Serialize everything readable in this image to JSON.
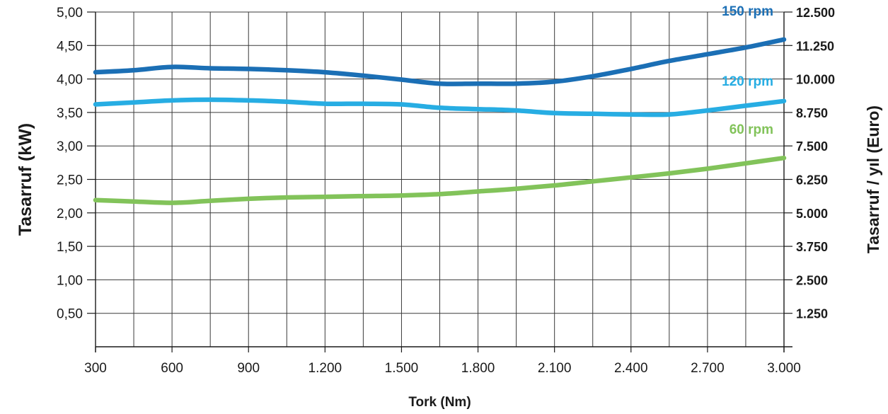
{
  "chart_data": {
    "type": "line",
    "ylabel": "Tasarruf (kW)",
    "ylabel_right": "Tasarruf / yıl  (Euro)",
    "xlabel": "Tork (Nm)",
    "xlim": [
      300,
      3000
    ],
    "ylim": [
      0,
      5
    ],
    "y_right_lim": [
      0,
      12500
    ],
    "grid": true,
    "x_ticks": [
      {
        "value": 300,
        "label": "300"
      },
      {
        "value": 600,
        "label": "600"
      },
      {
        "value": 900,
        "label": "900"
      },
      {
        "value": 1200,
        "label": "1.200"
      },
      {
        "value": 1500,
        "label": "1.500"
      },
      {
        "value": 1800,
        "label": "1.800"
      },
      {
        "value": 2100,
        "label": "2.100"
      },
      {
        "value": 2400,
        "label": "2.400"
      },
      {
        "value": 2700,
        "label": "2.700"
      },
      {
        "value": 3000,
        "label": "3.000"
      }
    ],
    "x_minor_gridlines": [
      450,
      750,
      1050,
      1350,
      1650,
      1950,
      2250,
      2550,
      2850
    ],
    "y_ticks_left": [
      {
        "value": 0.5,
        "label": "0,50"
      },
      {
        "value": 1.0,
        "label": "1,00"
      },
      {
        "value": 1.5,
        "label": "1,50"
      },
      {
        "value": 2.0,
        "label": "2,00"
      },
      {
        "value": 2.5,
        "label": "2,50"
      },
      {
        "value": 3.0,
        "label": "3,00"
      },
      {
        "value": 3.5,
        "label": "3,50"
      },
      {
        "value": 4.0,
        "label": "4,00"
      },
      {
        "value": 4.5,
        "label": "4,50"
      },
      {
        "value": 5.0,
        "label": "5,00"
      }
    ],
    "y_ticks_right": [
      {
        "value": 1250,
        "label": "1.250"
      },
      {
        "value": 2500,
        "label": "2.500"
      },
      {
        "value": 3750,
        "label": "3.750"
      },
      {
        "value": 5000,
        "label": "5.000"
      },
      {
        "value": 6250,
        "label": "6.250"
      },
      {
        "value": 7500,
        "label": "7.500"
      },
      {
        "value": 8750,
        "label": "8.750"
      },
      {
        "value": 10000,
        "label": "10.000"
      },
      {
        "value": 11250,
        "label": "11.250"
      },
      {
        "value": 12500,
        "label": "12.500"
      }
    ],
    "series": [
      {
        "name": "150 rpm",
        "color": "#1b6fb5",
        "x": [
          300,
          450,
          600,
          750,
          900,
          1050,
          1200,
          1350,
          1500,
          1650,
          1800,
          1950,
          2100,
          2250,
          2400,
          2550,
          2700,
          2850,
          3000
        ],
        "y": [
          4.1,
          4.13,
          4.18,
          4.16,
          4.15,
          4.13,
          4.1,
          4.05,
          3.99,
          3.93,
          3.93,
          3.93,
          3.96,
          4.04,
          4.15,
          4.27,
          4.37,
          4.47,
          4.59
        ]
      },
      {
        "name": "120 rpm",
        "color": "#27ade3",
        "x": [
          300,
          450,
          600,
          750,
          900,
          1050,
          1200,
          1350,
          1500,
          1650,
          1800,
          1950,
          2100,
          2250,
          2400,
          2550,
          2700,
          2850,
          3000
        ],
        "y": [
          3.62,
          3.65,
          3.68,
          3.69,
          3.68,
          3.66,
          3.63,
          3.63,
          3.62,
          3.57,
          3.55,
          3.53,
          3.49,
          3.48,
          3.47,
          3.47,
          3.53,
          3.6,
          3.67
        ]
      },
      {
        "name": "60 rpm",
        "color": "#82c35a",
        "x": [
          300,
          450,
          600,
          750,
          900,
          1050,
          1200,
          1350,
          1500,
          1650,
          1800,
          1950,
          2100,
          2250,
          2400,
          2550,
          2700,
          2850,
          3000
        ],
        "y": [
          2.19,
          2.17,
          2.15,
          2.18,
          2.21,
          2.23,
          2.24,
          2.25,
          2.26,
          2.28,
          2.32,
          2.36,
          2.41,
          2.47,
          2.53,
          2.59,
          2.66,
          2.74,
          2.82
        ]
      }
    ]
  }
}
